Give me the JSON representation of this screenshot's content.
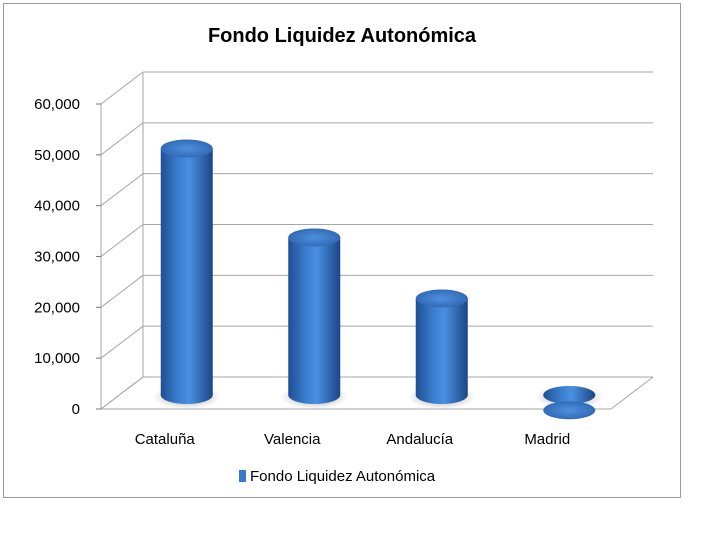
{
  "chart_data": {
    "type": "bar",
    "title": "Fondo Liquidez Autonómica",
    "categories": [
      "Cataluña",
      "Valencia",
      "Andalucía",
      "Madrid"
    ],
    "series": [
      {
        "name": "Fondo Liquidez Autonómica",
        "values": [
          54000,
          36500,
          24500,
          2500
        ]
      }
    ],
    "ylim": [
      0,
      60000
    ],
    "yticks": [
      "0",
      "10,000",
      "20,000",
      "30,000",
      "40,000",
      "50,000",
      "60,000"
    ],
    "grid": true,
    "legend": "bottom",
    "colors": {
      "bar": "#2f6fc0",
      "bar_light": "#5b97e0",
      "bar_dark": "#1d4f94",
      "grid": "#a6a6a6"
    }
  }
}
